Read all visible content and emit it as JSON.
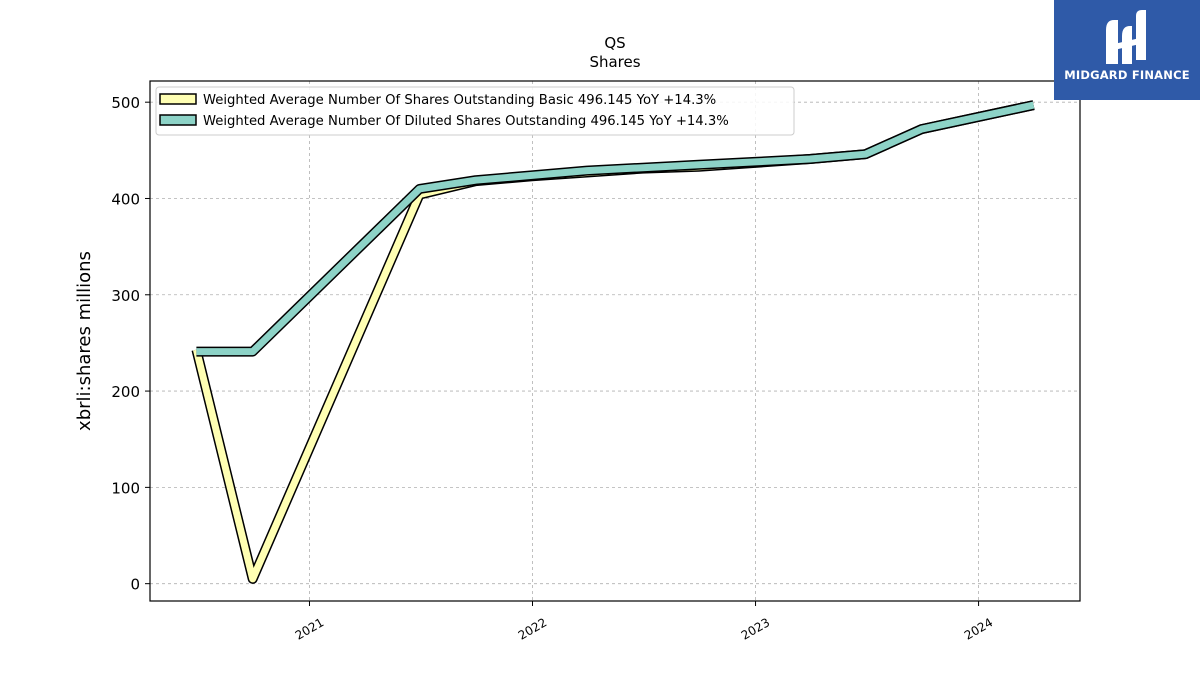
{
  "chart_data": {
    "type": "line",
    "title": "QS",
    "subtitle": "Shares",
    "xlabel": "",
    "ylabel": "xbrli:shares millions",
    "x_ticks": [
      "2021",
      "2022",
      "2023",
      "2024"
    ],
    "y_ticks": [
      0,
      100,
      200,
      300,
      400,
      500
    ],
    "ylim": [
      -18,
      522
    ],
    "xlim": [
      "2020-04-15",
      "2024-06-15"
    ],
    "grid": true,
    "legend_position": "top-left",
    "series": [
      {
        "name": "Weighted Average Number Of Shares Outstanding Basic  496.145 YoY +14.3%",
        "color": "#ffffb3",
        "x": [
          "2020-06-30",
          "2020-09-30",
          "2021-06-30",
          "2021-09-30",
          "2021-12-31",
          "2022-03-31",
          "2022-06-30",
          "2022-09-30",
          "2022-12-31",
          "2023-03-31",
          "2023-06-30",
          "2023-09-30",
          "2024-03-31"
        ],
        "values": [
          243,
          5,
          404,
          418,
          423,
          427,
          431,
          433,
          437,
          441,
          446,
          472,
          497
        ]
      },
      {
        "name": "Weighted Average Number Of Diluted Shares Outstanding  496.145 YoY +14.3%",
        "color": "#8dd3c7",
        "x": [
          "2020-06-30",
          "2020-09-30",
          "2021-06-30",
          "2021-09-30",
          "2021-12-31",
          "2022-03-31",
          "2022-06-30",
          "2022-09-30",
          "2022-12-31",
          "2023-03-31",
          "2023-06-30",
          "2023-09-30",
          "2024-03-31"
        ],
        "values": [
          241,
          241,
          410,
          419,
          424,
          429,
          432,
          435,
          438,
          441,
          446,
          472,
          497
        ]
      }
    ]
  },
  "logo": {
    "text": "MIDGARD FINANCE"
  }
}
